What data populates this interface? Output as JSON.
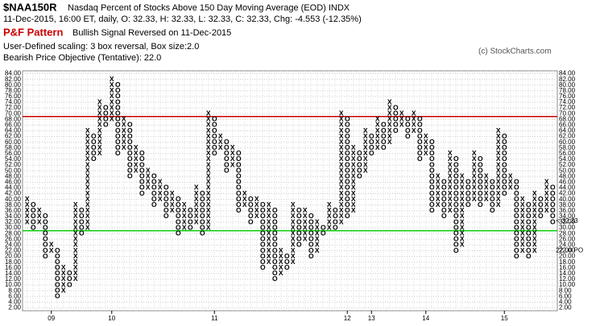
{
  "chart_data": {
    "type": "pnf",
    "symbol": "$NAA150R",
    "title": "Nasdaq Percent of Stocks Above 150 Day Moving Average (EOD)  INDX",
    "subtitle": "11-Dec-2015, 16:00 ET, daily, O: 32.33, H: 32.33, L: 32.33, C: 32.33, Chg: -4.553 (-12.35%)",
    "pattern_label": "P&F Pattern",
    "pattern": "Bullish Signal Reversed on 11-Dec-2015",
    "scaling": "User-Defined scaling: 3 box reversal, Box size:2.0",
    "objective": "Bearish Price Objective (Tentative): 22.0",
    "credit": "(c) StockCharts.com",
    "box_size": 2,
    "x_color": "#000000",
    "o_color": "#000000",
    "columns": [
      {
        "type": "X",
        "from": 32,
        "to": 40
      },
      {
        "type": "O",
        "from": 38,
        "to": 30
      },
      {
        "type": "X",
        "from": 32,
        "to": 36
      },
      {
        "type": "O",
        "from": 34,
        "to": 20
      },
      {
        "type": "X",
        "from": 22,
        "to": 24
      },
      {
        "type": "O",
        "from": 22,
        "to": 6
      },
      {
        "type": "X",
        "from": 8,
        "to": 16
      },
      {
        "type": "O",
        "from": 14,
        "to": 10
      },
      {
        "type": "X",
        "from": 12,
        "to": 38
      },
      {
        "type": "O",
        "from": 36,
        "to": 28
      },
      {
        "type": "X",
        "from": 30,
        "to": 64
      },
      {
        "type": "O",
        "from": 62,
        "to": 54
      },
      {
        "type": "X",
        "from": 56,
        "to": 74
      },
      {
        "type": "O",
        "from": 72,
        "to": 66
      },
      {
        "type": "X",
        "from": 68,
        "to": 82
      },
      {
        "type": "O",
        "from": 80,
        "to": 56
      },
      {
        "type": "X",
        "from": 58,
        "to": 68
      },
      {
        "type": "O",
        "from": 66,
        "to": 48
      },
      {
        "type": "X",
        "from": 50,
        "to": 58
      },
      {
        "type": "O",
        "from": 56,
        "to": 42
      },
      {
        "type": "X",
        "from": 44,
        "to": 50
      },
      {
        "type": "O",
        "from": 48,
        "to": 38
      },
      {
        "type": "X",
        "from": 40,
        "to": 46
      },
      {
        "type": "O",
        "from": 44,
        "to": 34
      },
      {
        "type": "X",
        "from": 36,
        "to": 42
      },
      {
        "type": "O",
        "from": 40,
        "to": 28
      },
      {
        "type": "X",
        "from": 30,
        "to": 38
      },
      {
        "type": "O",
        "from": 36,
        "to": 30
      },
      {
        "type": "X",
        "from": 32,
        "to": 44
      },
      {
        "type": "O",
        "from": 42,
        "to": 28
      },
      {
        "type": "X",
        "from": 30,
        "to": 70
      },
      {
        "type": "O",
        "from": 68,
        "to": 56
      },
      {
        "type": "X",
        "from": 58,
        "to": 62
      },
      {
        "type": "O",
        "from": 60,
        "to": 50
      },
      {
        "type": "X",
        "from": 52,
        "to": 58
      },
      {
        "type": "O",
        "from": 56,
        "to": 36
      },
      {
        "type": "X",
        "from": 38,
        "to": 42
      },
      {
        "type": "O",
        "from": 40,
        "to": 32
      },
      {
        "type": "X",
        "from": 34,
        "to": 40
      },
      {
        "type": "O",
        "from": 38,
        "to": 16
      },
      {
        "type": "X",
        "from": 18,
        "to": 38
      },
      {
        "type": "O",
        "from": 36,
        "to": 12
      },
      {
        "type": "X",
        "from": 14,
        "to": 22
      },
      {
        "type": "O",
        "from": 20,
        "to": 16
      },
      {
        "type": "X",
        "from": 18,
        "to": 38
      },
      {
        "type": "O",
        "from": 36,
        "to": 24
      },
      {
        "type": "X",
        "from": 26,
        "to": 36
      },
      {
        "type": "O",
        "from": 34,
        "to": 20
      },
      {
        "type": "X",
        "from": 22,
        "to": 32
      },
      {
        "type": "O",
        "from": 30,
        "to": 28
      },
      {
        "type": "X",
        "from": 30,
        "to": 38
      },
      {
        "type": "O",
        "from": 36,
        "to": 30
      },
      {
        "type": "X",
        "from": 32,
        "to": 70
      },
      {
        "type": "O",
        "from": 68,
        "to": 34
      },
      {
        "type": "X",
        "from": 36,
        "to": 58
      },
      {
        "type": "O",
        "from": 56,
        "to": 48
      },
      {
        "type": "X",
        "from": 50,
        "to": 64
      },
      {
        "type": "O",
        "from": 62,
        "to": 56
      },
      {
        "type": "X",
        "from": 58,
        "to": 68
      },
      {
        "type": "O",
        "from": 66,
        "to": 58
      },
      {
        "type": "X",
        "from": 60,
        "to": 74
      },
      {
        "type": "O",
        "from": 72,
        "to": 64
      },
      {
        "type": "X",
        "from": 66,
        "to": 70
      },
      {
        "type": "O",
        "from": 68,
        "to": 62
      },
      {
        "type": "X",
        "from": 64,
        "to": 70
      },
      {
        "type": "O",
        "from": 68,
        "to": 54
      },
      {
        "type": "X",
        "from": 56,
        "to": 62
      },
      {
        "type": "O",
        "from": 60,
        "to": 36
      },
      {
        "type": "X",
        "from": 38,
        "to": 48
      },
      {
        "type": "O",
        "from": 46,
        "to": 34
      },
      {
        "type": "X",
        "from": 36,
        "to": 56
      },
      {
        "type": "O",
        "from": 54,
        "to": 22
      },
      {
        "type": "X",
        "from": 24,
        "to": 48
      },
      {
        "type": "O",
        "from": 46,
        "to": 38
      },
      {
        "type": "X",
        "from": 40,
        "to": 56
      },
      {
        "type": "O",
        "from": 54,
        "to": 38
      },
      {
        "type": "X",
        "from": 40,
        "to": 48
      },
      {
        "type": "O",
        "from": 46,
        "to": 36
      },
      {
        "type": "X",
        "from": 38,
        "to": 64
      },
      {
        "type": "O",
        "from": 62,
        "to": 42
      },
      {
        "type": "X",
        "from": 44,
        "to": 48
      },
      {
        "type": "O",
        "from": 46,
        "to": 20
      },
      {
        "type": "X",
        "from": 22,
        "to": 40
      },
      {
        "type": "O",
        "from": 38,
        "to": 20
      },
      {
        "type": "X",
        "from": 22,
        "to": 42
      },
      {
        "type": "O",
        "from": 40,
        "to": 34
      },
      {
        "type": "X",
        "from": 36,
        "to": 46
      },
      {
        "type": "O",
        "from": 44,
        "to": 32
      }
    ],
    "year_labels": [
      {
        "column": 4,
        "label": "09"
      },
      {
        "column": 14,
        "label": "10"
      },
      {
        "column": 31,
        "label": "11"
      },
      {
        "column": 53,
        "label": "12"
      },
      {
        "column": 57,
        "label": "13"
      },
      {
        "column": 66,
        "label": "14"
      },
      {
        "column": 79,
        "label": "15"
      }
    ],
    "hlines": [
      {
        "value": 69,
        "color": "#cc0000"
      },
      {
        "value": 29,
        "color": "#00cc00"
      }
    ],
    "last_price": {
      "value": 32.33,
      "label": "<-32.33"
    },
    "price_objective": {
      "value": 22,
      "label": "22.00 PO"
    },
    "ylim": [
      1,
      85
    ],
    "yticks": [
      {
        "value": 2,
        "label": "2.00"
      },
      {
        "value": 4,
        "label": "4.00"
      },
      {
        "value": 6,
        "label": "6.00"
      },
      {
        "value": 8,
        "label": "8.00"
      },
      {
        "value": 10,
        "label": "10.00"
      },
      {
        "value": 12,
        "label": "12.00"
      },
      {
        "value": 14,
        "label": "14.00"
      },
      {
        "value": 16,
        "label": "16.00"
      },
      {
        "value": 18,
        "label": "18.00"
      },
      {
        "value": 20,
        "label": "20.00"
      },
      {
        "value": 22,
        "label": "22.00"
      },
      {
        "value": 24,
        "label": "24.00"
      },
      {
        "value": 26,
        "label": "26.00"
      },
      {
        "value": 28,
        "label": "28.00"
      },
      {
        "value": 30,
        "label": "30.00"
      },
      {
        "value": 32,
        "label": "32.00"
      },
      {
        "value": 34,
        "label": "34.00"
      },
      {
        "value": 36,
        "label": "36.00"
      },
      {
        "value": 38,
        "label": "38.00"
      },
      {
        "value": 40,
        "label": "40.00"
      },
      {
        "value": 42,
        "label": "42.00"
      },
      {
        "value": 44,
        "label": "44.00"
      },
      {
        "value": 46,
        "label": "46.00"
      },
      {
        "value": 48,
        "label": "48.00"
      },
      {
        "value": 50,
        "label": "50.00"
      },
      {
        "value": 52,
        "label": "52.00"
      },
      {
        "value": 54,
        "label": "54.00"
      },
      {
        "value": 56,
        "label": "56.00"
      },
      {
        "value": 58,
        "label": "58.00"
      },
      {
        "value": 60,
        "label": "60.00"
      },
      {
        "value": 62,
        "label": "62.00"
      },
      {
        "value": 64,
        "label": "64.00"
      },
      {
        "value": 66,
        "label": "66.00"
      },
      {
        "value": 68,
        "label": "68.00"
      },
      {
        "value": 70,
        "label": "70.00"
      },
      {
        "value": 72,
        "label": "72.00"
      },
      {
        "value": 74,
        "label": "74.00"
      },
      {
        "value": 76,
        "label": "76.00"
      },
      {
        "value": 78,
        "label": "78.00"
      },
      {
        "value": 80,
        "label": "80.00"
      },
      {
        "value": 82,
        "label": "82.00"
      },
      {
        "value": 84,
        "label": "84.00"
      }
    ],
    "grid": true
  }
}
